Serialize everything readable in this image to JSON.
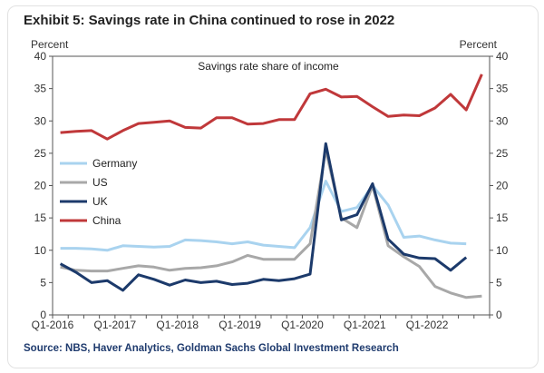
{
  "title": "Exhibit 5: Savings rate in China continued to rose in 2022",
  "source": "Source: NBS, Haver Analytics, Goldman Sachs Global Investment Research",
  "chart_data": {
    "type": "line",
    "subtitle": "Savings rate share of income",
    "ylabel_left": "Percent",
    "ylabel_right": "Percent",
    "ylim": [
      0,
      40
    ],
    "yticks": [
      0,
      5,
      10,
      15,
      20,
      25,
      30,
      35,
      40
    ],
    "x_tick_labels": [
      "Q1-2016",
      "Q1-2017",
      "Q1-2018",
      "Q1-2019",
      "Q1-2020",
      "Q1-2021",
      "Q1-2022"
    ],
    "x": [
      "Q1-2016",
      "Q2-2016",
      "Q3-2016",
      "Q4-2016",
      "Q1-2017",
      "Q2-2017",
      "Q3-2017",
      "Q4-2017",
      "Q1-2018",
      "Q2-2018",
      "Q3-2018",
      "Q4-2018",
      "Q1-2019",
      "Q2-2019",
      "Q3-2019",
      "Q4-2019",
      "Q1-2020",
      "Q2-2020",
      "Q3-2020",
      "Q4-2020",
      "Q1-2021",
      "Q2-2021",
      "Q3-2021",
      "Q4-2021",
      "Q1-2022",
      "Q2-2022",
      "Q3-2022",
      "Q4-2022"
    ],
    "grid": false,
    "legend_position": "left",
    "series": [
      {
        "name": "Germany",
        "color": "#a9d3ef",
        "values": [
          10.3,
          10.3,
          10.2,
          10.0,
          10.7,
          10.6,
          10.5,
          10.6,
          11.6,
          11.5,
          11.3,
          11.0,
          11.3,
          10.8,
          10.6,
          10.4,
          13.5,
          20.7,
          16.0,
          16.6,
          20.0,
          17.0,
          12.0,
          12.2,
          11.6,
          11.1,
          11.0,
          null
        ]
      },
      {
        "name": "US",
        "color": "#a8a8a8",
        "values": [
          7.4,
          6.9,
          6.8,
          6.8,
          7.2,
          7.6,
          7.4,
          6.9,
          7.2,
          7.3,
          7.6,
          8.2,
          9.2,
          8.6,
          8.6,
          8.6,
          11.0,
          25.5,
          15.0,
          13.5,
          20.0,
          10.7,
          9.0,
          7.5,
          4.4,
          3.4,
          2.7,
          2.9
        ]
      },
      {
        "name": "UK",
        "color": "#1c3a6b",
        "values": [
          7.9,
          6.6,
          5.0,
          5.3,
          3.8,
          6.2,
          5.5,
          4.6,
          5.4,
          5.0,
          5.2,
          4.7,
          4.9,
          5.5,
          5.3,
          5.6,
          6.3,
          26.5,
          14.7,
          15.5,
          20.3,
          11.7,
          9.4,
          8.8,
          8.7,
          6.9,
          8.9,
          null
        ]
      },
      {
        "name": "China",
        "color": "#c0383a",
        "values": [
          28.2,
          28.4,
          28.5,
          27.2,
          28.5,
          29.6,
          29.8,
          30.0,
          29.0,
          28.9,
          30.5,
          30.5,
          29.5,
          29.6,
          30.2,
          30.2,
          34.2,
          34.9,
          33.7,
          33.8,
          32.2,
          30.7,
          30.9,
          30.8,
          32.0,
          34.1,
          31.7,
          37.2
        ]
      }
    ]
  }
}
